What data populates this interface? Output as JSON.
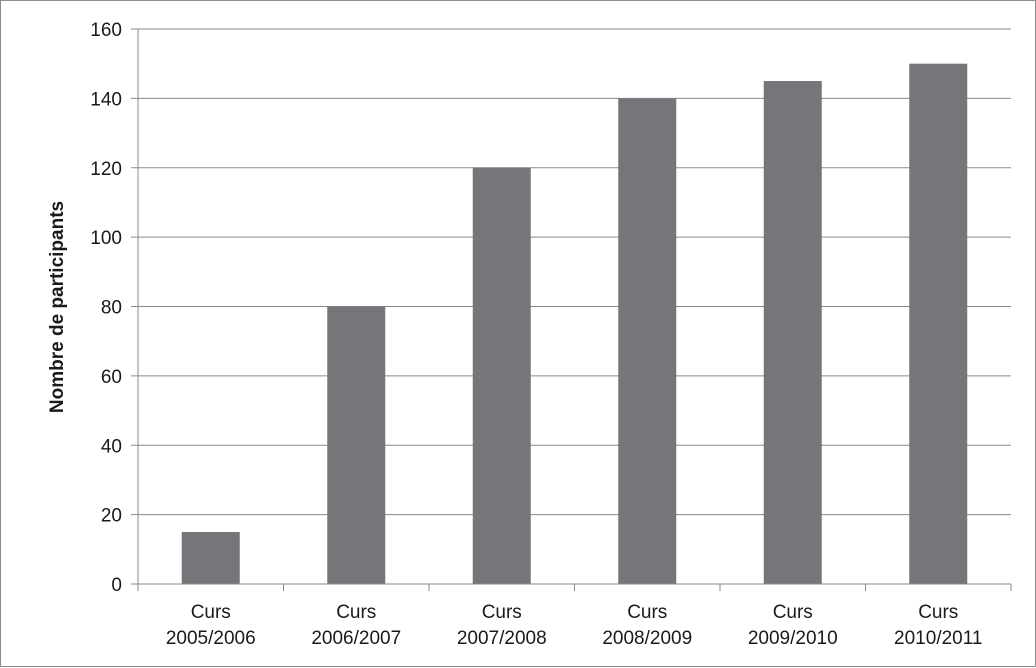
{
  "chart_data": {
    "type": "bar",
    "title": "",
    "xlabel": "",
    "ylabel": "Nombre de participants",
    "categories": [
      [
        "Curs",
        "2005/2006"
      ],
      [
        "Curs",
        "2006/2007"
      ],
      [
        "Curs",
        "2007/2008"
      ],
      [
        "Curs",
        "2008/2009"
      ],
      [
        "Curs",
        "2009/2010"
      ],
      [
        "Curs",
        "2010/2011"
      ]
    ],
    "values": [
      15,
      80,
      120,
      140,
      145,
      150
    ],
    "ylim": [
      0,
      160
    ],
    "yticks": [
      0,
      20,
      40,
      60,
      80,
      100,
      120,
      140,
      160
    ],
    "grid": true,
    "legend": "none",
    "bar_color": "#75767a",
    "grid_color": "#8a8a8a",
    "axis_color": "#8a8a8a"
  }
}
